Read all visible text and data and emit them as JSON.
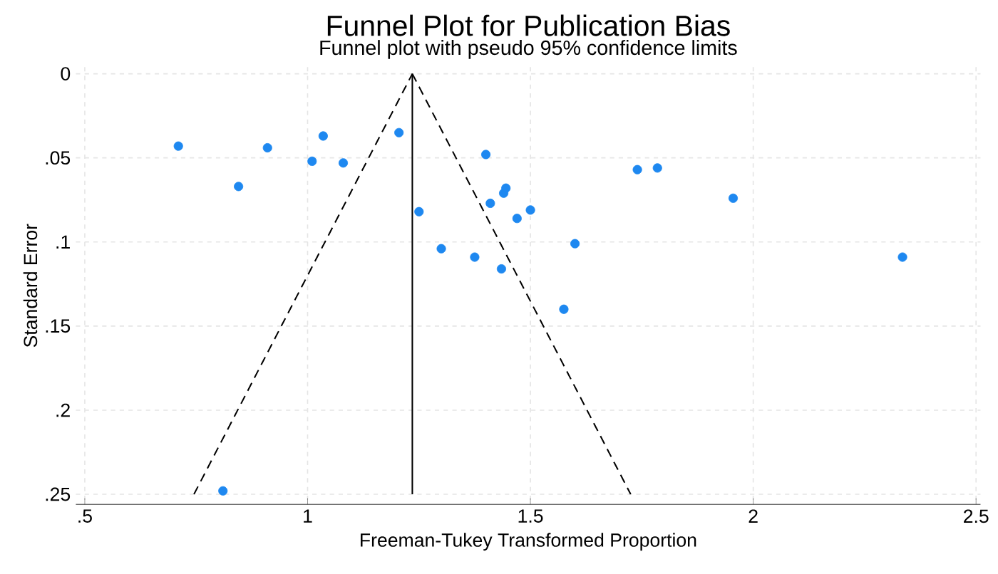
{
  "chart_data": {
    "type": "scatter",
    "title": "Funnel Plot for Publication Bias",
    "subtitle": "Funnel plot with pseudo 95% confidence limits",
    "xlabel": "Freeman-Tukey Transformed Proportion",
    "ylabel": "Standard Error",
    "xlim": [
      0.48,
      2.51
    ],
    "ylim": [
      0.256,
      -0.004
    ],
    "xticks": [
      {
        "value": 0.5,
        "label": ".5"
      },
      1,
      1.5,
      2,
      2.5
    ],
    "yticks": [
      0,
      {
        "value": 0.05,
        "label": ".05"
      },
      {
        "value": 0.1,
        "label": ".1"
      },
      {
        "value": 0.15,
        "label": ".15"
      },
      {
        "value": 0.2,
        "label": ".2"
      },
      {
        "value": 0.25,
        "label": ".25"
      }
    ],
    "grid": true,
    "legend": false,
    "series": [
      {
        "marker": "circle",
        "color": "#1e88f0",
        "x": [
          0.71,
          0.845,
          0.91,
          1.035,
          1.01,
          1.08,
          1.205,
          1.4,
          1.25,
          1.41,
          1.44,
          1.445,
          1.47,
          1.5,
          1.74,
          1.785,
          1.955,
          1.6,
          1.3,
          1.375,
          1.435,
          2.335,
          1.575,
          0.81
        ],
        "values": [
          0.043,
          0.067,
          0.044,
          0.037,
          0.052,
          0.053,
          0.035,
          0.048,
          0.082,
          0.077,
          0.071,
          0.068,
          0.086,
          0.081,
          0.057,
          0.056,
          0.074,
          0.101,
          0.104,
          0.109,
          0.116,
          0.109,
          0.14,
          0.248
        ]
      },
      {
        "type": "line",
        "marker": "none",
        "line_style": "solid",
        "color": "#000000",
        "x": [
          1.235,
          1.235
        ],
        "values": [
          0,
          0.25
        ]
      },
      {
        "type": "line",
        "marker": "none",
        "line_style": "dashed",
        "color": "#000000",
        "x": [
          0.745,
          1.235
        ],
        "values": [
          0.25,
          0
        ]
      },
      {
        "type": "line",
        "marker": "none",
        "line_style": "dashed",
        "color": "#000000",
        "x": [
          1.235,
          1.725
        ],
        "values": [
          0,
          0.25
        ]
      }
    ]
  }
}
